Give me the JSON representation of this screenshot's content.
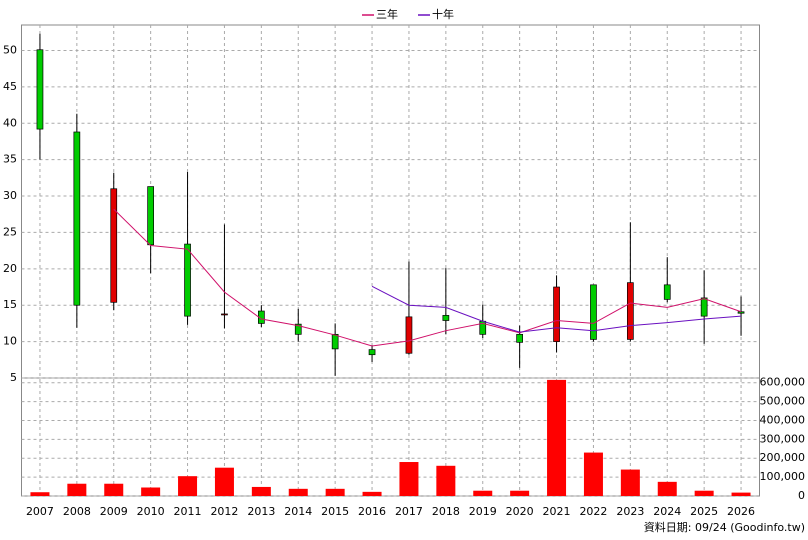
{
  "chart_data": [
    {
      "type": "candlestick",
      "open": [
        50.1,
        38.8,
        15.4,
        31.3,
        23.4,
        13.8,
        14.2,
        12.4,
        11,
        8.9,
        8.4,
        13.6,
        12.8,
        11,
        10,
        17.8,
        10.3,
        17.8,
        16,
        14.1
      ],
      "high": [
        52.3,
        41.3,
        33.2,
        31.3,
        33.3,
        26.1,
        15,
        14.5,
        12.5,
        9.5,
        21,
        20.1,
        15.1,
        12.2,
        19.1,
        17.8,
        26.4,
        21.6,
        19.8,
        16.2
      ],
      "low": [
        35,
        11.9,
        14.3,
        19.4,
        12.3,
        11.8,
        12,
        10,
        5.3,
        7.2,
        8.2,
        11,
        10.5,
        6.4,
        8.5,
        10,
        10,
        15.4,
        9.7,
        10.8
      ],
      "close": [
        39.2,
        15,
        31,
        23.3,
        13.5,
        13.8,
        12.5,
        11,
        9,
        8.2,
        13.4,
        12.9,
        11,
        9.9,
        17.5,
        10.3,
        18.1,
        15.8,
        13.5,
        13.9
      ],
      "up_color": "#e00000",
      "down_color": "#00cc00",
      "series": [
        {
          "name": "三年",
          "color": "#d0106a",
          "values": [
            null,
            null,
            28.2,
            23.2,
            22.7,
            16.8,
            13.1,
            12.2,
            10.9,
            9.4,
            10.1,
            11.5,
            12.5,
            11.2,
            12.9,
            12.5,
            15.3,
            14.7,
            15.9,
            14.1
          ]
        },
        {
          "name": "十年",
          "color": "#6a10c0",
          "values": [
            null,
            null,
            null,
            null,
            null,
            null,
            null,
            null,
            null,
            17.6,
            15,
            14.7,
            12.8,
            11.3,
            11.9,
            11.5,
            12.2,
            12.6,
            13.1,
            13.5
          ]
        }
      ],
      "ylim": [
        5,
        53.5
      ],
      "yticks": [
        5,
        10,
        15,
        20,
        25,
        30,
        35,
        40,
        45,
        50
      ],
      "grid": true,
      "note": "資料日期: 09/24 (Goodinfo.tw)"
    },
    {
      "type": "bar",
      "categories": [
        "2007",
        "2008",
        "2009",
        "2010",
        "2011",
        "2012",
        "2013",
        "2014",
        "2015",
        "2016",
        "2017",
        "2018",
        "2019",
        "2020",
        "2021",
        "2022",
        "2023",
        "2024",
        "2025",
        "2026"
      ],
      "values": [
        20000,
        65000,
        65000,
        45000,
        105000,
        150000,
        48000,
        38000,
        38000,
        22000,
        180000,
        160000,
        28000,
        28000,
        615000,
        230000,
        140000,
        75000,
        28000,
        18000
      ],
      "color": "#ff0000",
      "ylim": [
        0,
        625000
      ],
      "yticks": [
        0,
        {
          "value": 100000,
          "label": "100,000"
        },
        {
          "value": 200000,
          "label": "200,000"
        },
        {
          "value": 300000,
          "label": "300,000"
        },
        {
          "value": 400000,
          "label": "400,000"
        },
        {
          "value": 500000,
          "label": "500,000"
        },
        {
          "value": 600000,
          "label": "600,000"
        }
      ],
      "grid": true
    }
  ]
}
